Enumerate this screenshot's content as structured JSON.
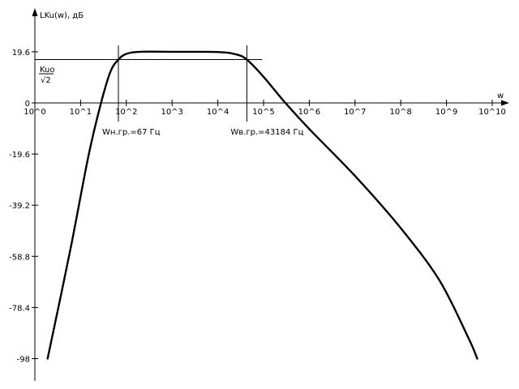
{
  "chart_data": {
    "type": "line",
    "ylabel": "LKu(w), дБ",
    "xlabel": "w",
    "x_scale": "log10",
    "xlim": [
      "10^0",
      "10^10"
    ],
    "ylim": [
      -98,
      19.6
    ],
    "x_tick_labels": [
      "10^0",
      "10^1",
      "10^2",
      "10^3",
      "10^4",
      "10^5",
      "10^6",
      "10^7",
      "10^8",
      "10^9",
      "10^10"
    ],
    "y_ticks": [
      19.6,
      0,
      -19.6,
      -39.2,
      -58.8,
      -78.4,
      -98
    ],
    "y_tick_labels": [
      "19.6",
      "0",
      "-19.6",
      "-39.2",
      "-58.8",
      "-78.4",
      "-98"
    ],
    "ref_label_numerator": "Kuo",
    "ref_label_denominator": "√2",
    "reference_level_db": 16.6,
    "markers": [
      {
        "label": "Wн.гр.=67 Гц",
        "w": 67
      },
      {
        "label": "Wв.гр.=43184 Гц",
        "w": 43184
      }
    ],
    "series": [
      {
        "line_color": "#000000",
        "points": [
          {
            "w": 1.9,
            "db": -98
          },
          {
            "w": 6,
            "db": -56
          },
          {
            "w": 15,
            "db": -20
          },
          {
            "w": 28,
            "db": 0
          },
          {
            "w": 45,
            "db": 12
          },
          {
            "w": 67,
            "db": 16.6
          },
          {
            "w": 100,
            "db": 18.8
          },
          {
            "w": 200,
            "db": 19.6
          },
          {
            "w": 1000,
            "db": 19.6
          },
          {
            "w": 10000,
            "db": 19.5
          },
          {
            "w": 25000,
            "db": 18.6
          },
          {
            "w": 43184,
            "db": 16.6
          },
          {
            "w": 100000,
            "db": 10
          },
          {
            "w": 300000,
            "db": 0
          },
          {
            "w": 1000000,
            "db": -10
          },
          {
            "w": 10000000,
            "db": -28
          },
          {
            "w": 100000000,
            "db": -48
          },
          {
            "w": 700000000,
            "db": -68
          },
          {
            "w": 3000000000,
            "db": -90
          },
          {
            "w": 4700000000,
            "db": -98
          }
        ]
      }
    ]
  }
}
